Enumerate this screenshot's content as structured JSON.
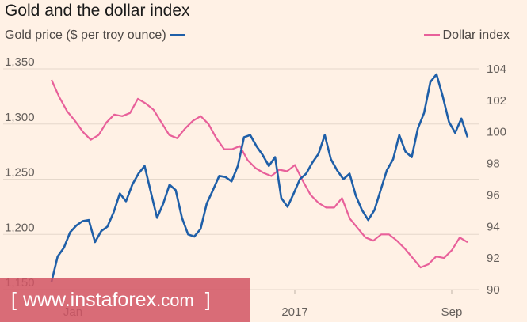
{
  "chart_data": {
    "type": "line",
    "title": "Gold and the dollar index",
    "x_tick_labels": [
      "Jan",
      "2017",
      "Sep"
    ],
    "y_left": {
      "label": "Gold price ($ per troy ounce)",
      "min": 1150,
      "max": 1350,
      "ticks": [
        "1,350",
        "1,300",
        "1,250",
        "1,200",
        "1,150"
      ]
    },
    "y_right": {
      "label": "Dollar index",
      "min": 90,
      "max": 104,
      "ticks": [
        "104",
        "102",
        "100",
        "98",
        "96",
        "94",
        "92",
        "90"
      ]
    },
    "grid": true,
    "series": [
      {
        "name": "Gold price ($ per troy ounce)",
        "axis": "left",
        "color": "#1f5fa8",
        "values": [
          1157,
          1180,
          1188,
          1202,
          1208,
          1212,
          1213,
          1193,
          1203,
          1207,
          1220,
          1237,
          1230,
          1245,
          1255,
          1262,
          1238,
          1215,
          1228,
          1245,
          1240,
          1215,
          1200,
          1198,
          1205,
          1228,
          1240,
          1253,
          1252,
          1248,
          1262,
          1288,
          1290,
          1280,
          1272,
          1262,
          1270,
          1233,
          1225,
          1237,
          1250,
          1255,
          1265,
          1273,
          1290,
          1268,
          1258,
          1250,
          1255,
          1235,
          1222,
          1213,
          1222,
          1240,
          1258,
          1268,
          1290,
          1275,
          1270,
          1296,
          1310,
          1338,
          1345,
          1325,
          1302,
          1292,
          1305,
          1288
        ]
      },
      {
        "name": "Dollar index",
        "axis": "right",
        "color": "#e8609a",
        "values": [
          103.3,
          102.2,
          101.3,
          100.7,
          100.0,
          99.5,
          99.8,
          100.6,
          101.1,
          101.0,
          101.2,
          102.1,
          101.8,
          101.4,
          100.6,
          99.8,
          99.6,
          100.2,
          100.7,
          101.0,
          100.5,
          99.6,
          98.9,
          98.9,
          99.1,
          98.2,
          97.7,
          97.4,
          97.2,
          97.6,
          97.5,
          97.9,
          96.9,
          96.0,
          95.5,
          95.2,
          95.2,
          95.8,
          94.5,
          93.9,
          93.3,
          93.1,
          93.5,
          93.5,
          93.1,
          92.6,
          92.0,
          91.4,
          91.6,
          92.1,
          92.0,
          92.5,
          93.3,
          93.0
        ]
      }
    ]
  },
  "watermark": {
    "open": "[",
    "name": "www.instaforex",
    "tld": ".com",
    "close": "]"
  }
}
